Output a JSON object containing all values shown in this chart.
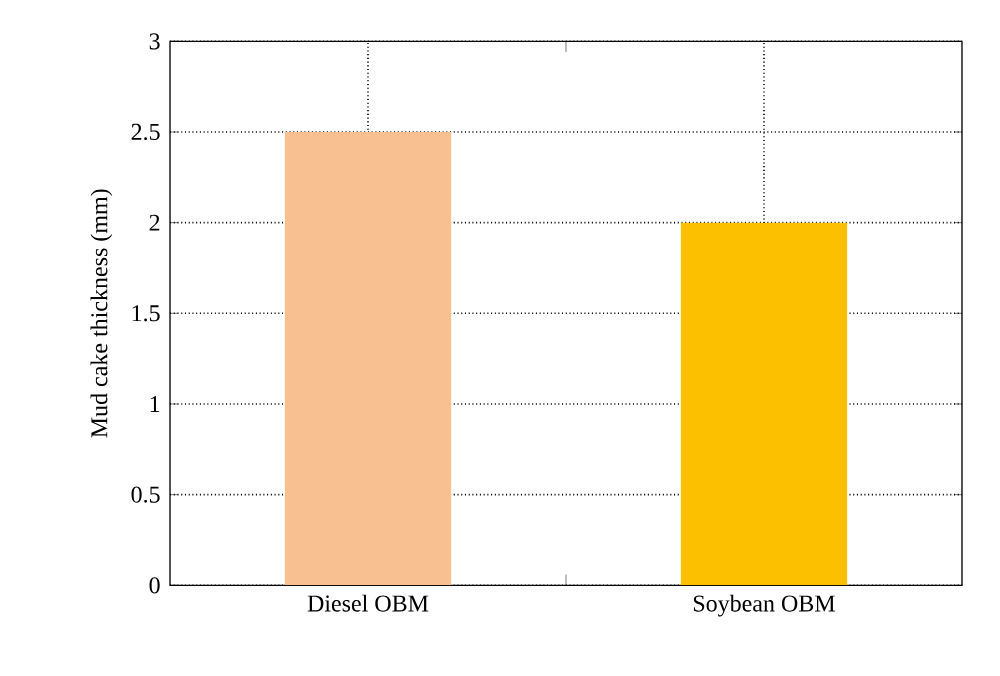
{
  "chart_data": {
    "type": "bar",
    "ylabel": "Mud cake thickness (mm)",
    "categories": [
      "Diesel OBM",
      "Soybean OBM"
    ],
    "values": [
      2.5,
      2.0
    ],
    "colors": [
      "#f8c090",
      "#fdc000"
    ],
    "ylim": [
      0,
      3
    ],
    "yticks": [
      0,
      0.5,
      1,
      1.5,
      2,
      2.5,
      3
    ],
    "grid": true
  }
}
